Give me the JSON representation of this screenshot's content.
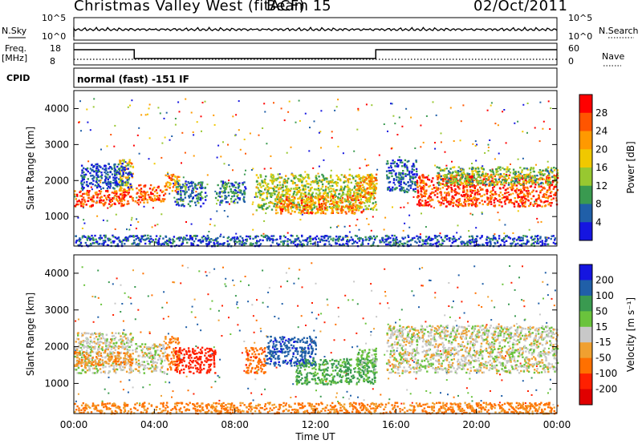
{
  "header": {
    "title": "Christmas Valley West (fitACF)",
    "beam": "Beam 15",
    "date": "02/Oct/2011"
  },
  "summary": {
    "nsky_label": "N.Sky",
    "nsky_ticks": [
      "10^5",
      "10^0"
    ],
    "nsearch_label": "N.Search",
    "nsearch_ticks": [
      "10^5",
      "10^0"
    ],
    "freq_label": "Freq.",
    "freq_unit": "[MHz]",
    "freq_ticks": [
      "18",
      "8"
    ],
    "nave_label": "Nave",
    "nave_ticks": [
      "60",
      "0"
    ],
    "cpid_label": "CPID",
    "cpid_text": "normal (fast) -151 IF"
  },
  "chart_data": [
    {
      "type": "heatmap",
      "name": "power",
      "ylabel": "Slant Range [km]",
      "yticks": [
        "4000",
        "3000",
        "2000",
        "1000"
      ],
      "ylim": [
        180,
        4500
      ],
      "colorbar_label": "Power [dB]",
      "colorbar_ticks": [
        "28",
        "24",
        "20",
        "16",
        "12",
        "8",
        "4"
      ],
      "colorbar_colors": [
        "#ff0000",
        "#ff5500",
        "#ff9900",
        "#f0c800",
        "#98c830",
        "#3a9a50",
        "#205fa8",
        "#1515e0"
      ],
      "bands": [
        {
          "x": [
            0,
            2.9
          ],
          "y": [
            1300,
            1750
          ],
          "v": 26
        },
        {
          "x": [
            2.2,
            2.9
          ],
          "y": [
            1700,
            2600
          ],
          "v": 20
        },
        {
          "x": [
            0.3,
            2.9
          ],
          "y": [
            1800,
            2500
          ],
          "v": 8
        },
        {
          "x": [
            3.0,
            4.5
          ],
          "y": [
            1400,
            1900
          ],
          "v": 25
        },
        {
          "x": [
            4.5,
            5.2
          ],
          "y": [
            1700,
            2200
          ],
          "v": 22
        },
        {
          "x": [
            5.0,
            6.5
          ],
          "y": [
            1300,
            2000
          ],
          "v": 10
        },
        {
          "x": [
            7.0,
            8.5
          ],
          "y": [
            1400,
            2000
          ],
          "v": 10
        },
        {
          "x": [
            9.0,
            15.0
          ],
          "y": [
            1200,
            2200
          ],
          "v": 16
        },
        {
          "x": [
            10.0,
            14.5
          ],
          "y": [
            1100,
            1600
          ],
          "v": 23
        },
        {
          "x": [
            14.0,
            15.0
          ],
          "y": [
            1500,
            2200
          ],
          "v": 22
        },
        {
          "x": [
            15.5,
            17.0
          ],
          "y": [
            1700,
            2600
          ],
          "v": 8
        },
        {
          "x": [
            17.0,
            24.0
          ],
          "y": [
            1300,
            2200
          ],
          "v": 26
        },
        {
          "x": [
            18.0,
            24.0
          ],
          "y": [
            1900,
            2400
          ],
          "v": 14
        },
        {
          "x": [
            0,
            24
          ],
          "y": [
            200,
            500
          ],
          "v": 8
        }
      ]
    },
    {
      "type": "heatmap",
      "name": "velocity",
      "ylabel": "Slant Range [km]",
      "yticks": [
        "4000",
        "3000",
        "2000",
        "1000"
      ],
      "ylim": [
        180,
        4500
      ],
      "colorbar_label": "Velocity [m s⁻¹]",
      "colorbar_ticks": [
        "200",
        "100",
        "50",
        "15",
        "-15",
        "-50",
        "-100",
        "-200"
      ],
      "colorbar_colors": [
        "#1515e0",
        "#205fa8",
        "#3a9a50",
        "#6ac33c",
        "#c8c8c8",
        "#f0a030",
        "#ff7000",
        "#ff2000",
        "#e00000"
      ],
      "bands": [
        {
          "x": [
            0,
            2.9
          ],
          "y": [
            1300,
            2400
          ],
          "v": 0
        },
        {
          "x": [
            0,
            2.9
          ],
          "y": [
            1500,
            1900
          ],
          "v": -40
        },
        {
          "x": [
            3.0,
            4.5
          ],
          "y": [
            1300,
            2100
          ],
          "v": 0
        },
        {
          "x": [
            4.5,
            5.2
          ],
          "y": [
            1400,
            2300
          ],
          "v": -60
        },
        {
          "x": [
            5.0,
            7.0
          ],
          "y": [
            1300,
            2000
          ],
          "v": -160
        },
        {
          "x": [
            8.5,
            9.5
          ],
          "y": [
            1300,
            2000
          ],
          "v": -80
        },
        {
          "x": [
            9.5,
            12.0
          ],
          "y": [
            1500,
            2300
          ],
          "v": 180
        },
        {
          "x": [
            11.0,
            15.0
          ],
          "y": [
            1000,
            1700
          ],
          "v": 60
        },
        {
          "x": [
            14.0,
            15.0
          ],
          "y": [
            1300,
            2000
          ],
          "v": 30
        },
        {
          "x": [
            15.5,
            24.0
          ],
          "y": [
            1300,
            2600
          ],
          "v": 0
        },
        {
          "x": [
            0,
            24
          ],
          "y": [
            200,
            500
          ],
          "v": -60
        }
      ]
    }
  ],
  "xaxis": {
    "label": "Time UT",
    "ticks": [
      "00:00",
      "04:00",
      "08:00",
      "12:00",
      "16:00",
      "20:00",
      "00:00"
    ],
    "range_hours": [
      0,
      24
    ]
  }
}
